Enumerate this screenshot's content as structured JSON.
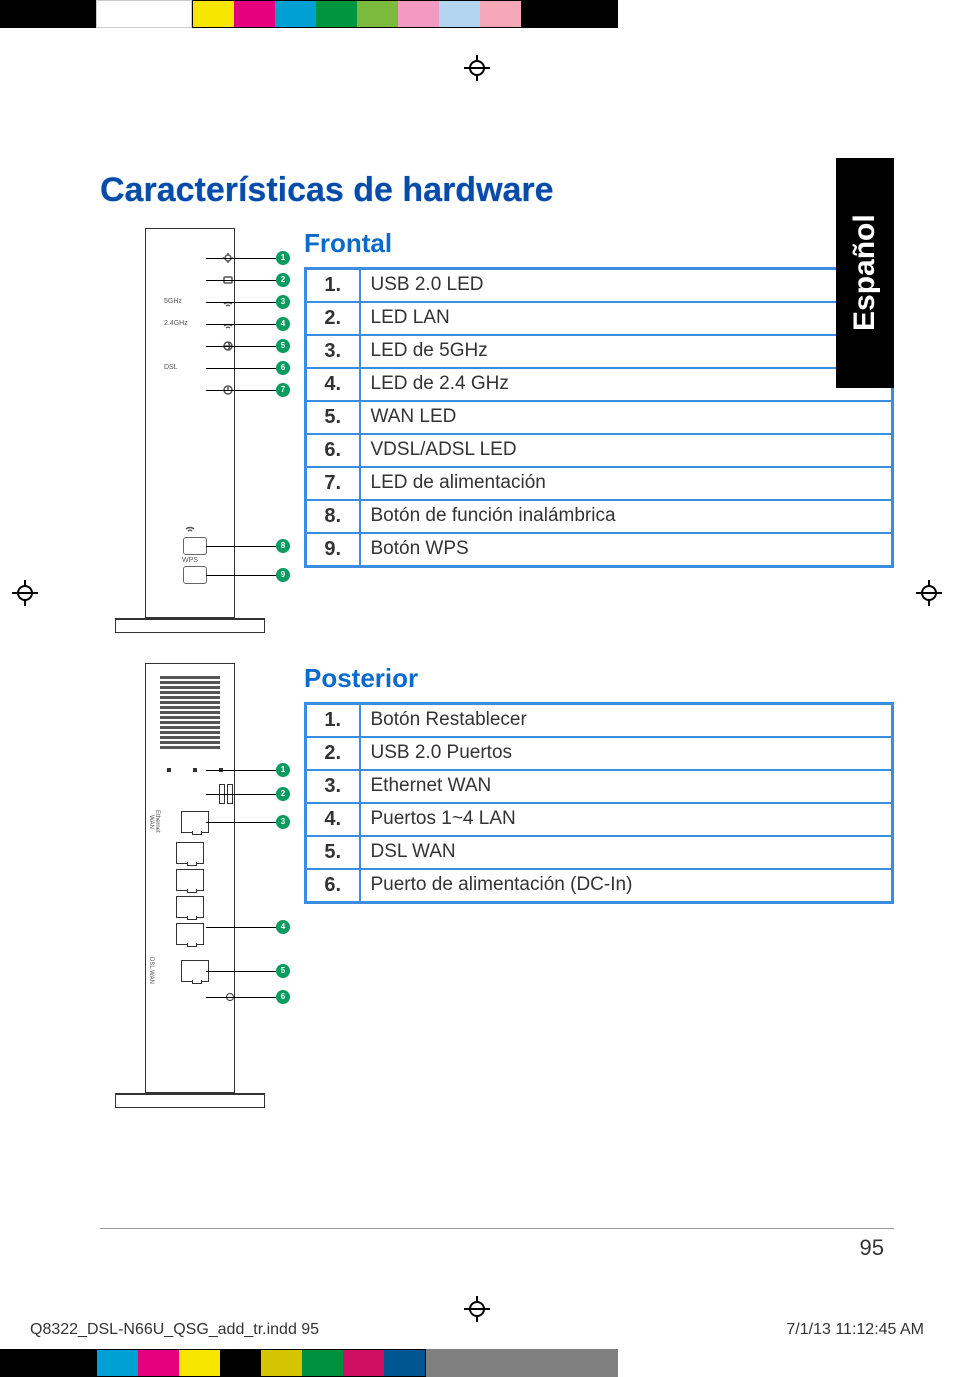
{
  "colors": {
    "title": "#0a4aa8",
    "subtitle": "#0a6bcc",
    "table_border": "#3b8de0",
    "callout_bg": "#0a9b5e",
    "tab_bg": "#000000",
    "color_bar_top": [
      "#000000",
      "#ffffff",
      "#f7e600",
      "#e6007e",
      "#00a0d2",
      "#009640",
      "#7cba3d",
      "#f49ac1",
      "#b4d5f0",
      "#f6a7b8"
    ],
    "color_bar_bottom": [
      "#009fe3",
      "#e6007e",
      "#f7e600",
      "#000000",
      "#d4c500",
      "#00913f",
      "#d10f62",
      "#005691",
      "#808080",
      "#808080"
    ]
  },
  "language_tab": "Español",
  "title": "Características de hardware",
  "front": {
    "heading": "Frontal",
    "led_labels": [
      "5GHz",
      "2.4GHz",
      "DSL",
      "WPS"
    ],
    "rows": [
      {
        "num": "1.",
        "desc": "USB 2.0 LED"
      },
      {
        "num": "2.",
        "desc": "LED LAN"
      },
      {
        "num": "3.",
        "desc": "LED de 5GHz"
      },
      {
        "num": "4.",
        "desc": "LED de 2.4 GHz"
      },
      {
        "num": "5.",
        "desc": "WAN LED"
      },
      {
        "num": "6.",
        "desc": "VDSL/ADSL LED"
      },
      {
        "num": "7.",
        "desc": "LED de alimentación"
      },
      {
        "num": "8.",
        "desc": "Botón de función inalámbrica"
      },
      {
        "num": "9.",
        "desc": " Botón WPS"
      }
    ],
    "callouts": [
      "1",
      "2",
      "3",
      "4",
      "5",
      "6",
      "7",
      "8",
      "9"
    ]
  },
  "rear": {
    "heading": "Posterior",
    "port_labels": [
      "Ethernet WAN",
      "DSL WAN"
    ],
    "rows": [
      {
        "num": "1.",
        "desc": "Botón Restablecer"
      },
      {
        "num": "2.",
        "desc": "USB 2.0 Puertos"
      },
      {
        "num": "3.",
        "desc": "Ethernet WAN"
      },
      {
        "num": "4.",
        "desc": "Puertos 1~4 LAN"
      },
      {
        "num": "5.",
        "desc": "DSL WAN"
      },
      {
        "num": "6.",
        "desc": "Puerto de alimentación (DC-In)"
      }
    ],
    "callouts": [
      "1",
      "2",
      "3",
      "4",
      "5",
      "6"
    ]
  },
  "page_number": "95",
  "print_footer": {
    "file": "Q8322_DSL-N66U_QSG_add_tr.indd   95",
    "timestamp": "7/1/13   11:12:45 AM"
  }
}
